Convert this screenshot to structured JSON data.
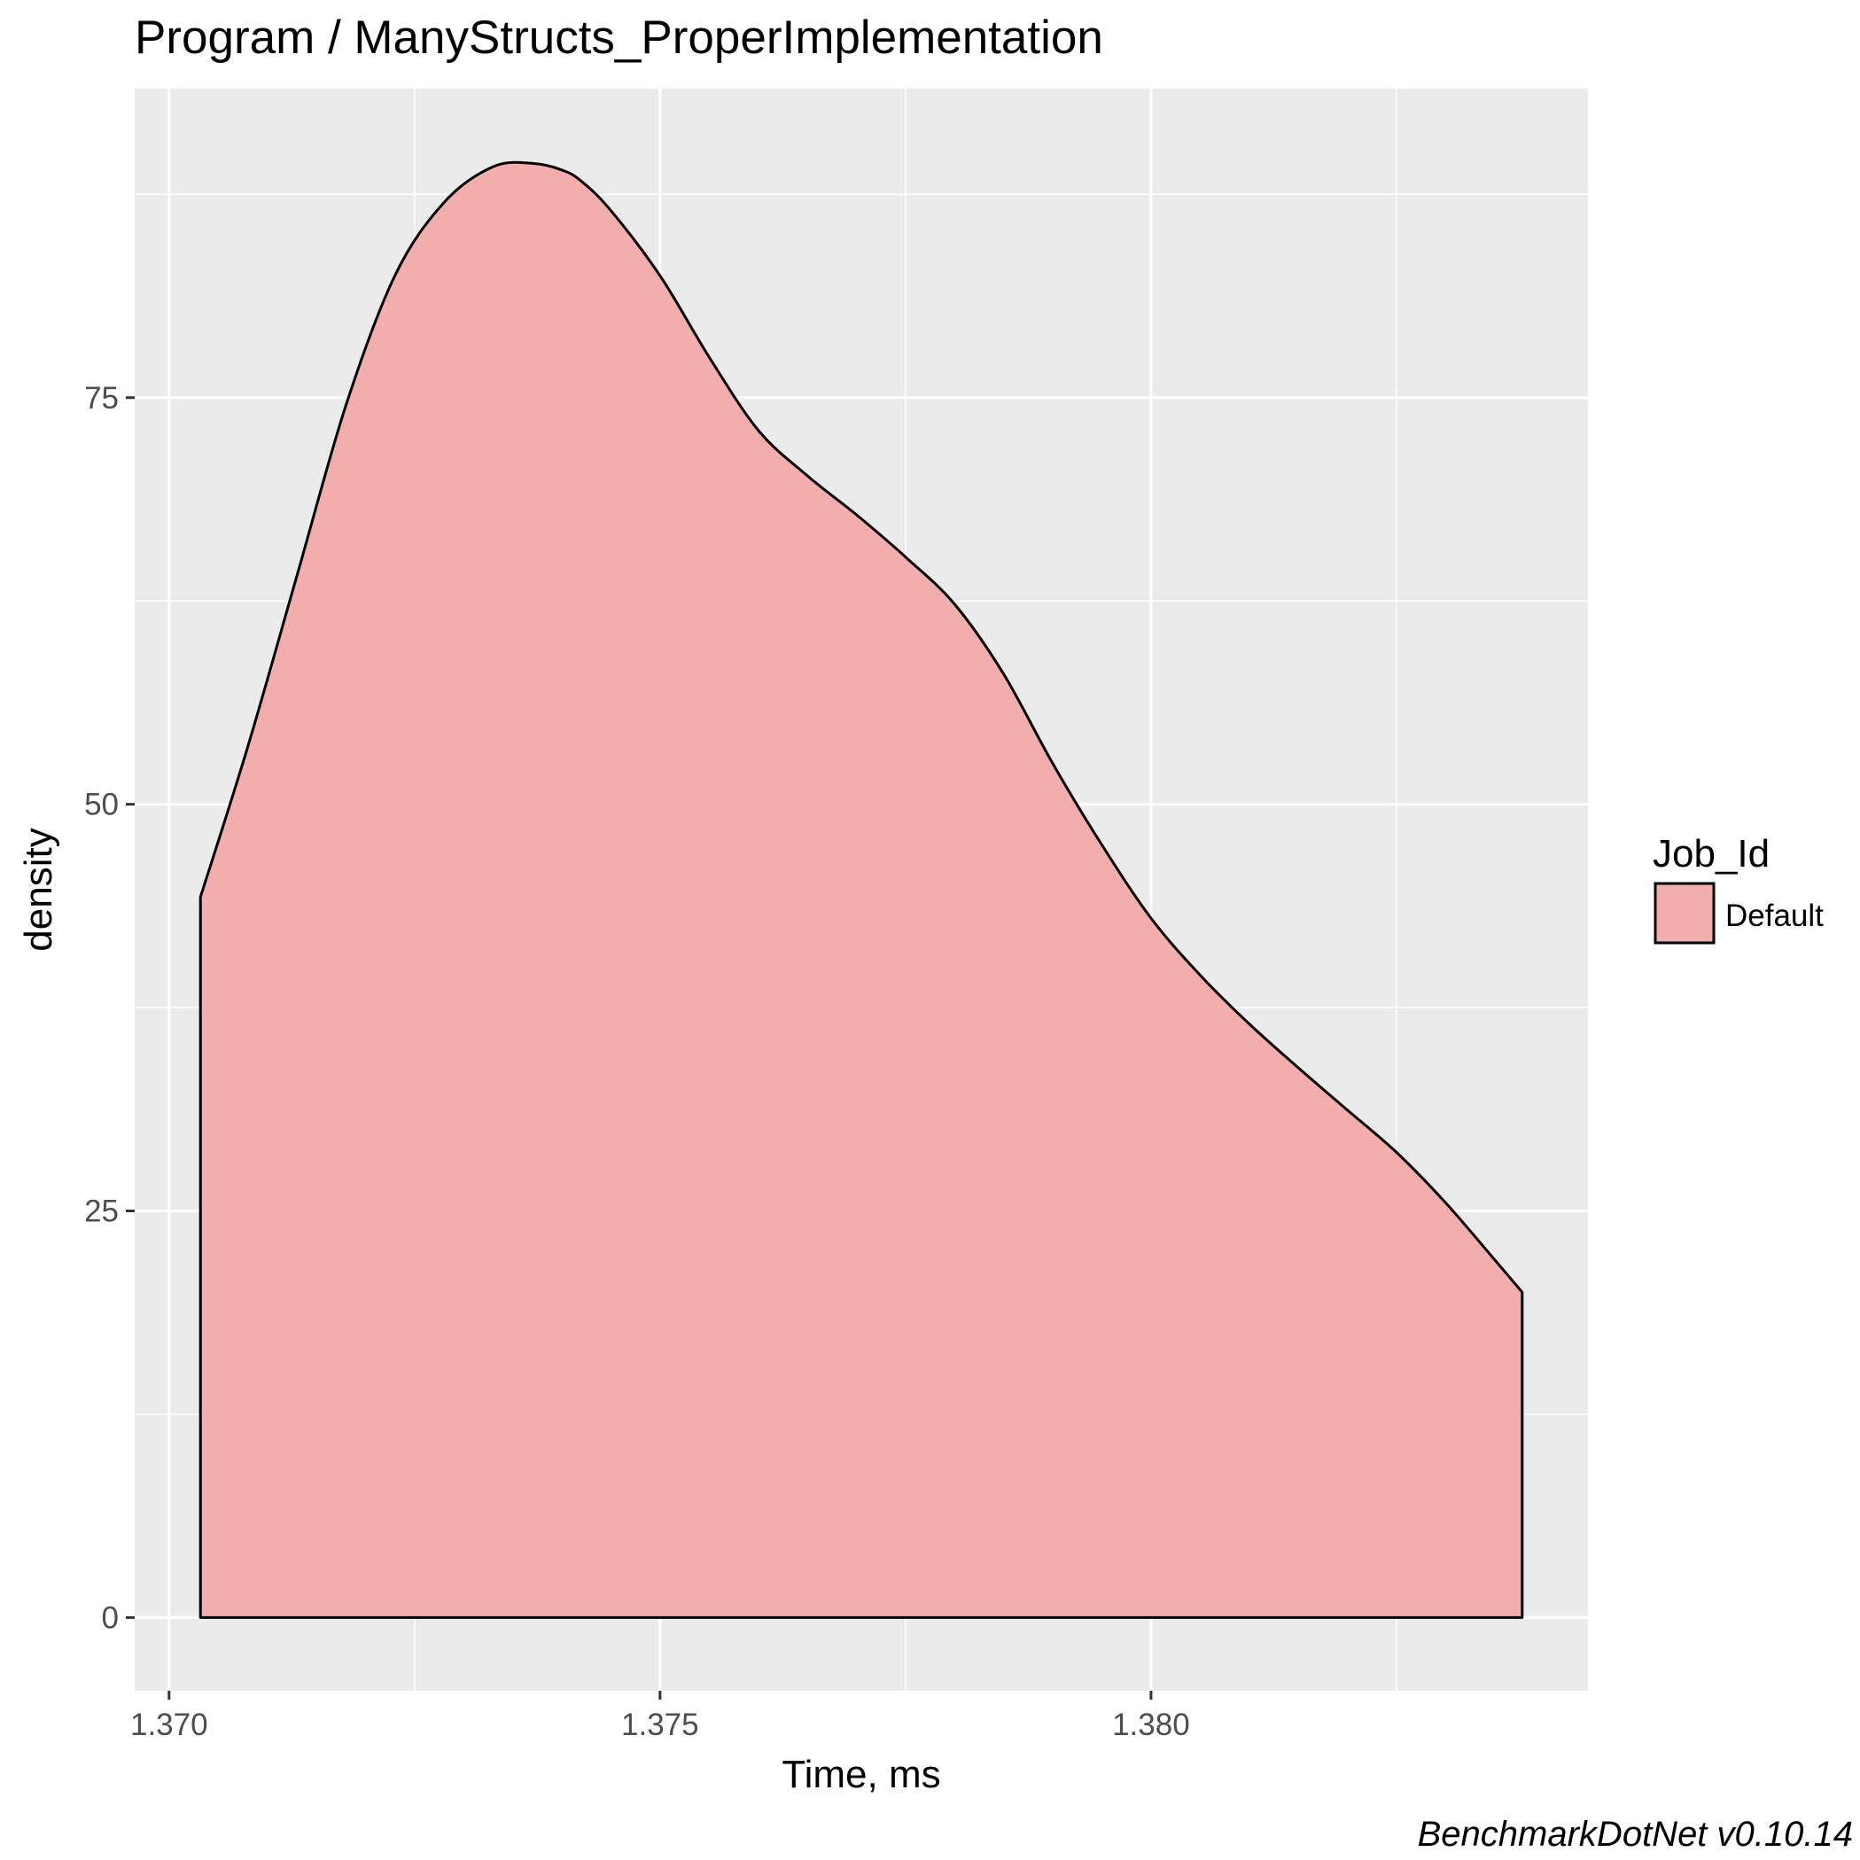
{
  "chart_data": {
    "type": "area",
    "title": "Program / ManyStructs_ProperImplementation",
    "xlabel": "Time, ms",
    "ylabel": "density",
    "xlim": [
      1.36965,
      1.38445
    ],
    "ylim": [
      -4.5,
      94
    ],
    "x_ticks": [
      1.37,
      1.375,
      1.38
    ],
    "x_tick_labels": [
      "1.370",
      "1.375",
      "1.380"
    ],
    "x_minor_ticks": [
      1.3725,
      1.3775,
      1.3825
    ],
    "y_ticks": [
      0,
      25,
      50,
      75
    ],
    "y_tick_labels": [
      "0",
      "25",
      "50",
      "75"
    ],
    "y_minor_ticks": [
      12.5,
      37.5,
      62.5,
      87.5
    ],
    "grid": true,
    "legend": {
      "title": "Job_Id",
      "position": "right"
    },
    "series": [
      {
        "name": "Default",
        "fill": "#f1aeac",
        "stroke": "#000000",
        "x": [
          1.37032,
          1.3708,
          1.3713,
          1.3718,
          1.3723,
          1.3728,
          1.3733,
          1.3737,
          1.374,
          1.3742,
          1.3745,
          1.375,
          1.3755,
          1.376,
          1.3765,
          1.377,
          1.3775,
          1.378,
          1.3785,
          1.379,
          1.3795,
          1.38,
          1.3805,
          1.381,
          1.3815,
          1.382,
          1.3825,
          1.383,
          1.3835,
          1.38378
        ],
        "y": [
          44.3,
          53.5,
          64.0,
          74.5,
          82.5,
          87.0,
          89.2,
          89.4,
          89.0,
          88.3,
          86.5,
          82.5,
          77.5,
          73.0,
          70.2,
          67.8,
          65.2,
          62.3,
          58.0,
          52.5,
          47.5,
          43.0,
          39.5,
          36.5,
          33.8,
          31.2,
          28.6,
          25.5,
          22.0,
          20.0
        ]
      }
    ]
  },
  "footer": {
    "caption": "BenchmarkDotNet v0.10.14"
  },
  "colors": {
    "panel_background": "#ebebeb",
    "grid_major": "#ffffff",
    "axis_text": "#4d4d4d",
    "fill": "#f1aeac",
    "outline": "#000000"
  }
}
